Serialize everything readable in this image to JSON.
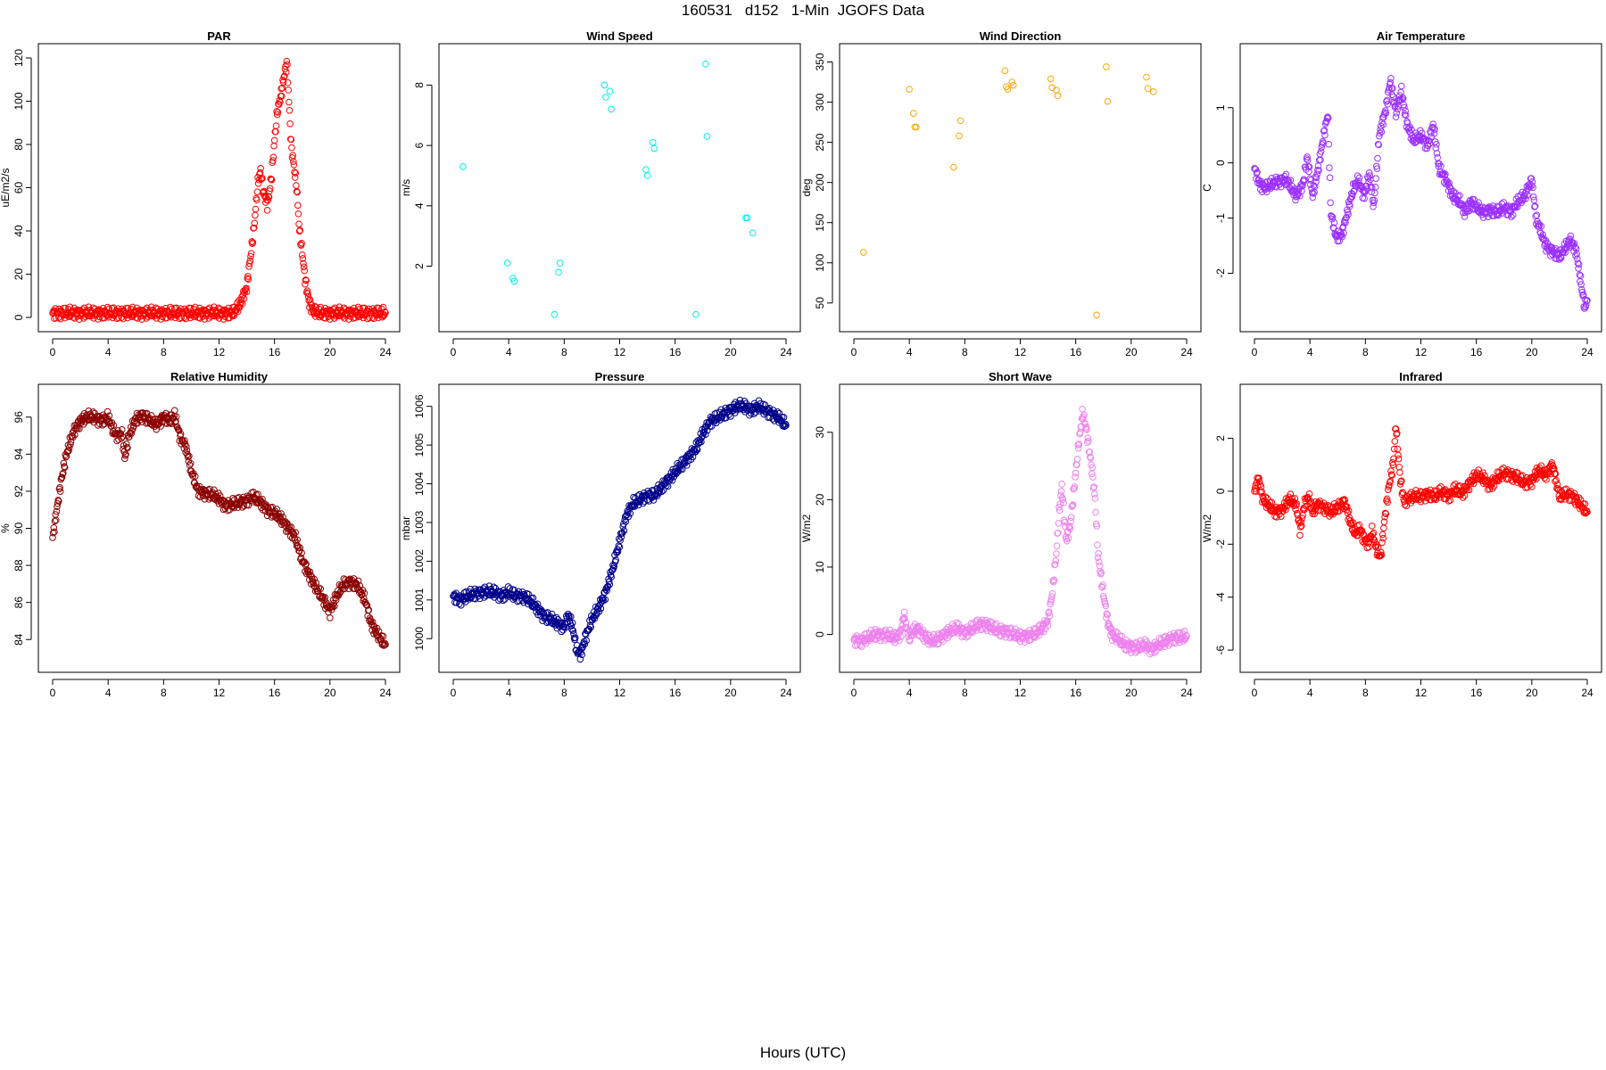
{
  "title": "160531   d152   1-Min  JGOFS Data",
  "xlabel": "Hours (UTC)",
  "chart_data": [
    {
      "type": "scatter",
      "title": "PAR",
      "ylabel": "uE/m2/s",
      "color": "#ff0000",
      "xlim": [
        0,
        24
      ],
      "ylim": [
        0,
        120
      ],
      "xticks": [
        0,
        4,
        8,
        12,
        16,
        20,
        24
      ],
      "yticks": [
        0,
        20,
        40,
        60,
        80,
        100,
        120
      ],
      "series": [
        {
          "dense": true,
          "x": [
            0,
            13,
            13.5,
            14,
            14.5,
            14.8,
            15,
            15.2,
            15.5,
            15.8,
            16,
            16.2,
            16.5,
            16.7,
            16.9,
            17,
            17.1,
            17.2,
            17.4,
            17.6,
            17.8,
            18,
            18.2,
            18.5,
            18.8,
            19.2,
            19.6,
            24
          ],
          "y": [
            2,
            2,
            6,
            14,
            40,
            62,
            68,
            58,
            52,
            66,
            82,
            95,
            104,
            112,
            118,
            105,
            92,
            80,
            70,
            60,
            40,
            30,
            18,
            7,
            3,
            2,
            2,
            2
          ]
        }
      ]
    },
    {
      "type": "scatter",
      "title": "Wind Speed",
      "ylabel": "m/s",
      "color": "#00eeee",
      "xlim": [
        0,
        24
      ],
      "ylim": [
        0.3,
        8.9
      ],
      "xticks": [
        0,
        4,
        8,
        12,
        16,
        20,
        24
      ],
      "yticks": [
        2,
        4,
        6,
        8
      ],
      "series": [
        {
          "dense": false,
          "x": [
            0.7,
            3.9,
            4.3,
            4.4,
            7.3,
            7.6,
            7.7,
            10.9,
            11.0,
            11.3,
            11.4,
            13.9,
            14.0,
            14.4,
            14.5,
            17.5,
            18.2,
            18.3,
            21.1,
            21.2,
            21.6
          ],
          "y": [
            5.3,
            2.1,
            1.6,
            1.5,
            0.4,
            1.8,
            2.1,
            8.0,
            7.6,
            7.8,
            7.2,
            5.2,
            5.0,
            6.1,
            5.9,
            0.4,
            8.7,
            6.3,
            3.6,
            3.6,
            3.1
          ]
        }
      ]
    },
    {
      "type": "scatter",
      "title": "Wind Direction",
      "ylabel": "deg",
      "color": "#ffa500",
      "xlim": [
        0,
        24
      ],
      "ylim": [
        32,
        355
      ],
      "xticks": [
        0,
        4,
        8,
        12,
        16,
        20,
        24
      ],
      "yticks": [
        50,
        100,
        150,
        200,
        250,
        300,
        350
      ],
      "series": [
        {
          "dense": false,
          "x": [
            0.7,
            4.0,
            4.3,
            4.4,
            4.5,
            7.2,
            7.6,
            7.7,
            10.9,
            11.0,
            11.1,
            11.4,
            11.5,
            14.2,
            14.3,
            14.6,
            14.7,
            17.5,
            18.2,
            18.3,
            21.1,
            21.2,
            21.6
          ],
          "y": [
            113,
            316,
            286,
            269,
            269,
            219,
            258,
            277,
            339,
            319,
            316,
            325,
            321,
            329,
            318,
            315,
            308,
            35,
            344,
            301,
            331,
            317,
            313
          ]
        }
      ]
    },
    {
      "type": "scatter",
      "title": "Air Temperature",
      "ylabel": "C",
      "color": "#9b30ff",
      "xlim": [
        0,
        24
      ],
      "ylim": [
        -2.8,
        1.9
      ],
      "xticks": [
        0,
        4,
        8,
        12,
        16,
        20,
        24
      ],
      "yticks": [
        -2,
        -1,
        0,
        1
      ],
      "series": [
        {
          "dense": true,
          "x": [
            0,
            0.4,
            0.8,
            1.5,
            2.3,
            3.0,
            3.5,
            3.8,
            4.2,
            4.6,
            5.0,
            5.3,
            5.5,
            5.9,
            6.3,
            6.7,
            7.1,
            7.5,
            7.9,
            8.3,
            8.6,
            9.0,
            9.5,
            9.8,
            10.2,
            10.6,
            11.0,
            11.5,
            12.0,
            12.5,
            12.9,
            13.3,
            13.8,
            14.3,
            14.8,
            15.2,
            15.6,
            16.0,
            16.5,
            17.0,
            17.5,
            18.0,
            18.5,
            19.0,
            19.5,
            20.0,
            20.3,
            20.6,
            21.0,
            21.5,
            22.0,
            22.5,
            22.8,
            23.2,
            23.5,
            23.8,
            24
          ],
          "y": [
            -0.1,
            -0.4,
            -0.45,
            -0.35,
            -0.3,
            -0.6,
            -0.4,
            0.1,
            -0.6,
            -0.1,
            0.5,
            0.9,
            -0.9,
            -1.35,
            -1.3,
            -0.9,
            -0.5,
            -0.3,
            -0.6,
            -0.2,
            -0.8,
            0.5,
            1.0,
            1.5,
            0.9,
            1.3,
            0.7,
            0.4,
            0.5,
            0.3,
            0.7,
            -0.1,
            -0.3,
            -0.6,
            -0.7,
            -0.9,
            -0.7,
            -0.8,
            -0.9,
            -0.85,
            -0.9,
            -0.8,
            -0.9,
            -0.7,
            -0.6,
            -0.3,
            -1.0,
            -1.2,
            -1.5,
            -1.6,
            -1.7,
            -1.5,
            -1.4,
            -1.6,
            -2.1,
            -2.6,
            -2.5
          ]
        }
      ]
    },
    {
      "type": "scatter",
      "title": "Relative Humidity",
      "ylabel": "%",
      "color": "#8b0000",
      "xlim": [
        0,
        24
      ],
      "ylim": [
        83,
        97
      ],
      "xticks": [
        0,
        4,
        8,
        12,
        16,
        20,
        24
      ],
      "yticks": [
        84,
        86,
        88,
        90,
        92,
        94,
        96
      ],
      "series": [
        {
          "dense": true,
          "x": [
            0,
            0.3,
            0.6,
            1.0,
            1.5,
            2.0,
            2.5,
            3.0,
            3.5,
            4.0,
            4.3,
            4.6,
            5.0,
            5.2,
            5.5,
            6.0,
            6.5,
            7.0,
            7.5,
            8.0,
            8.5,
            8.8,
            9.2,
            9.6,
            10.0,
            10.5,
            11.0,
            11.5,
            12.0,
            12.5,
            13.0,
            13.5,
            14.0,
            14.5,
            15.0,
            15.5,
            16.0,
            16.5,
            17.0,
            17.5,
            18.0,
            18.5,
            19.0,
            19.5,
            20.0,
            20.5,
            21.0,
            21.5,
            22.0,
            22.5,
            23.0,
            23.5,
            24
          ],
          "y": [
            89.5,
            91.0,
            92.5,
            94.0,
            95.2,
            95.8,
            96.0,
            96.0,
            95.8,
            96.0,
            95.4,
            95.0,
            95.1,
            93.8,
            95.0,
            95.9,
            96.1,
            95.8,
            95.6,
            96.0,
            95.8,
            96.1,
            94.9,
            94.4,
            93.1,
            92.0,
            91.9,
            91.8,
            91.6,
            91.2,
            91.3,
            91.4,
            91.5,
            91.7,
            91.4,
            91.0,
            90.8,
            90.5,
            90.0,
            89.5,
            88.3,
            87.5,
            86.8,
            86.2,
            85.5,
            86.4,
            87.0,
            87.1,
            86.9,
            86.2,
            84.8,
            84.2,
            83.7
          ]
        }
      ]
    },
    {
      "type": "scatter",
      "title": "Pressure",
      "ylabel": "mbar",
      "color": "#00008b",
      "xlim": [
        0,
        24
      ],
      "ylim": [
        999.5,
        1006.2
      ],
      "xticks": [
        0,
        4,
        8,
        12,
        16,
        20,
        24
      ],
      "yticks": [
        1000,
        1001,
        1002,
        1003,
        1004,
        1005,
        1006
      ],
      "series": [
        {
          "dense": true,
          "x": [
            0,
            0.5,
            1.0,
            2.0,
            3.0,
            3.5,
            4.0,
            4.5,
            5.0,
            5.5,
            6.0,
            6.5,
            7.0,
            7.5,
            8.0,
            8.3,
            8.6,
            8.9,
            9.2,
            9.5,
            10.0,
            10.5,
            11.0,
            11.5,
            12.0,
            12.5,
            13.0,
            13.5,
            14.0,
            14.5,
            15.0,
            15.5,
            16.0,
            16.5,
            17.0,
            17.5,
            18.0,
            18.5,
            19.0,
            19.5,
            20.0,
            20.5,
            21.0,
            21.5,
            22.0,
            22.5,
            23.0,
            23.5,
            24
          ],
          "y": [
            1001.1,
            1001.0,
            1001.1,
            1001.2,
            1001.2,
            1001.1,
            1001.2,
            1001.1,
            1001.1,
            1001.0,
            1000.8,
            1000.6,
            1000.5,
            1000.4,
            1000.3,
            1000.6,
            1000.3,
            999.7,
            999.6,
            1000.0,
            1000.5,
            1000.8,
            1001.2,
            1001.8,
            1002.5,
            1003.2,
            1003.5,
            1003.6,
            1003.7,
            1003.7,
            1003.9,
            1004.1,
            1004.3,
            1004.5,
            1004.7,
            1004.9,
            1005.3,
            1005.6,
            1005.7,
            1005.8,
            1005.9,
            1006.0,
            1006.0,
            1005.9,
            1006.0,
            1005.9,
            1005.8,
            1005.7,
            1005.5
          ]
        }
      ]
    },
    {
      "type": "scatter",
      "title": "Short Wave",
      "ylabel": "W/m2",
      "color": "#ee82ee",
      "xlim": [
        0,
        24
      ],
      "ylim": [
        -3.5,
        35
      ],
      "xticks": [
        0,
        4,
        8,
        12,
        16,
        20,
        24
      ],
      "yticks": [
        0,
        10,
        20,
        30
      ],
      "series": [
        {
          "dense": true,
          "x": [
            0,
            0.5,
            1.0,
            1.5,
            2.0,
            2.5,
            3.0,
            3.4,
            3.6,
            3.8,
            4.0,
            4.3,
            4.5,
            5.0,
            5.5,
            6.0,
            6.5,
            7.0,
            7.5,
            8.0,
            8.5,
            9.0,
            9.5,
            10.0,
            10.5,
            11.0,
            11.5,
            12.0,
            12.5,
            13.0,
            13.5,
            14.0,
            14.3,
            14.6,
            14.8,
            15.0,
            15.3,
            15.6,
            15.8,
            16.0,
            16.2,
            16.5,
            16.8,
            17.0,
            17.2,
            17.4,
            17.6,
            17.8,
            18.0,
            18.3,
            18.6,
            19.0,
            19.5,
            20.0,
            20.5,
            21.0,
            21.5,
            22.0,
            22.5,
            23.0,
            23.5,
            24
          ],
          "y": [
            -0.8,
            -1.0,
            -0.5,
            0,
            0,
            -0.2,
            -0.5,
            0.2,
            3.0,
            1.0,
            -0.5,
            0.5,
            1.0,
            0,
            -1.0,
            -0.8,
            0,
            0.5,
            1.0,
            0.2,
            0.8,
            1.5,
            1.5,
            1.0,
            0.5,
            0.5,
            0,
            -0.3,
            -0.2,
            0,
            0.8,
            2.0,
            6.0,
            12.0,
            18.0,
            22.0,
            14.0,
            16.0,
            20.0,
            24.0,
            28.0,
            33.0,
            30.0,
            27.0,
            24.0,
            20.0,
            12.0,
            9.0,
            6.0,
            2.0,
            0,
            -0.5,
            -1.5,
            -1.8,
            -2.0,
            -1.5,
            -2.2,
            -1.5,
            -1.0,
            -0.5,
            -0.5,
            -0.3
          ]
        }
      ]
    },
    {
      "type": "scatter",
      "title": "Infrared",
      "ylabel": "W/m2",
      "color": "#ff0000",
      "xlim": [
        0,
        24
      ],
      "ylim": [
        -6.3,
        3.5
      ],
      "xticks": [
        0,
        4,
        8,
        12,
        16,
        20,
        24
      ],
      "yticks": [
        -6,
        -4,
        -2,
        0,
        2
      ],
      "series": [
        {
          "dense": true,
          "x": [
            0,
            0.3,
            0.6,
            1.0,
            1.5,
            2.0,
            2.5,
            3.0,
            3.3,
            3.6,
            3.9,
            4.2,
            4.5,
            5.0,
            5.5,
            6.0,
            6.5,
            7.0,
            7.3,
            7.6,
            7.9,
            8.2,
            8.5,
            8.8,
            9.1,
            9.4,
            9.7,
            10.0,
            10.2,
            10.5,
            10.8,
            11.0,
            11.5,
            12.0,
            12.5,
            13.0,
            13.5,
            14.0,
            14.5,
            15.0,
            15.5,
            16.0,
            16.5,
            17.0,
            17.5,
            18.0,
            18.5,
            19.0,
            19.5,
            20.0,
            20.5,
            21.0,
            21.5,
            22.0,
            22.5,
            23.0,
            23.5,
            24
          ],
          "y": [
            0,
            0.5,
            -0.3,
            -0.5,
            -0.8,
            -0.7,
            -0.3,
            -0.5,
            -1.5,
            -0.5,
            -0.2,
            -0.8,
            -0.5,
            -0.6,
            -0.8,
            -0.6,
            -0.4,
            -1.3,
            -1.6,
            -1.4,
            -1.8,
            -2.0,
            -1.5,
            -2.2,
            -2.5,
            -1.0,
            0.2,
            1.0,
            2.5,
            0.5,
            -0.4,
            -0.3,
            -0.2,
            -0.2,
            -0.1,
            -0.2,
            0,
            -0.2,
            0.1,
            -0.1,
            0.3,
            0.6,
            0.5,
            0.2,
            0.5,
            0.7,
            0.6,
            0.5,
            0.3,
            0.4,
            0.8,
            0.6,
            1.0,
            -0.2,
            -0.1,
            -0.2,
            -0.5,
            -0.8
          ]
        }
      ]
    }
  ]
}
